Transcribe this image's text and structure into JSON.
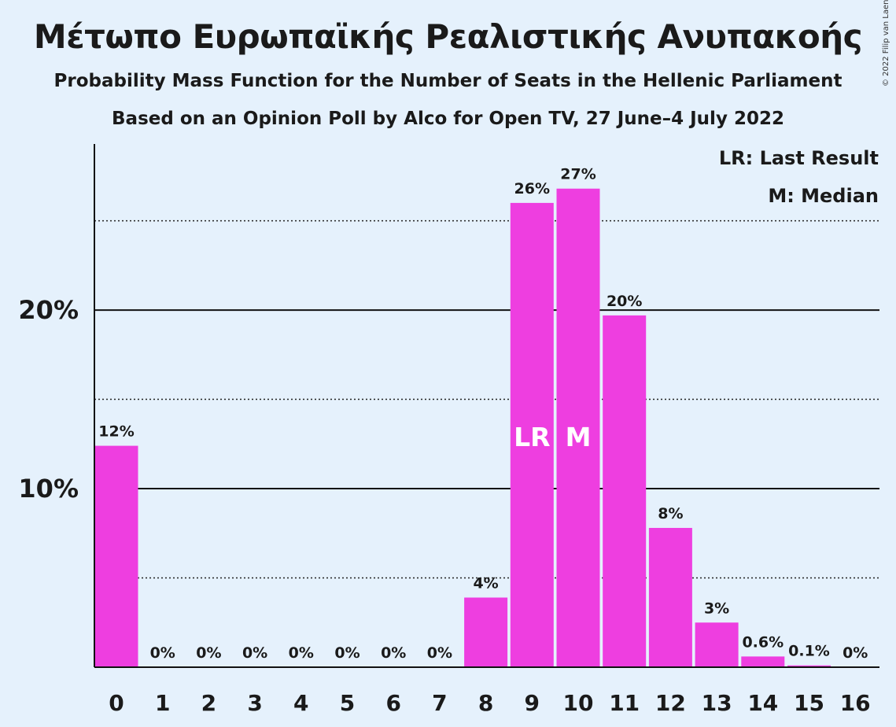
{
  "chart_data": {
    "type": "bar",
    "title": "Μέτωπο Ευρωπαϊκής Ρεαλιστικής Ανυπακοής",
    "subtitle": "Probability Mass Function for the Number of Seats in the Hellenic Parliament",
    "subtitle2": "Based on an Opinion Poll by Alco for Open TV, 27 June–4 July 2022",
    "copyright": "© 2022 Filip van Laenen",
    "categories": [
      "0",
      "1",
      "2",
      "3",
      "4",
      "5",
      "6",
      "7",
      "8",
      "9",
      "10",
      "11",
      "12",
      "13",
      "14",
      "15",
      "16"
    ],
    "values": [
      12.4,
      0,
      0,
      0,
      0,
      0,
      0,
      0,
      3.9,
      26.0,
      26.8,
      19.7,
      7.8,
      2.5,
      0.6,
      0.1,
      0
    ],
    "labels": [
      "12%",
      "0%",
      "0%",
      "0%",
      "0%",
      "0%",
      "0%",
      "0%",
      "4%",
      "26%",
      "27%",
      "20%",
      "8%",
      "3%",
      "0.6%",
      "0.1%",
      "0%"
    ],
    "y_ticks": [
      {
        "value": 10,
        "label": "10%"
      },
      {
        "value": 20,
        "label": "20%"
      }
    ],
    "dotted_gridlines": [
      5,
      15,
      25
    ],
    "ylim": [
      0,
      29.3
    ],
    "bar_color": "#ee3ee0",
    "background": "#e5f1fc",
    "markers": [
      {
        "index": 9,
        "text": "LR"
      },
      {
        "index": 10,
        "text": "M"
      }
    ],
    "legend": [
      "LR: Last Result",
      "M: Median"
    ],
    "legend_position": "top-right",
    "xlabel": "",
    "ylabel": ""
  }
}
